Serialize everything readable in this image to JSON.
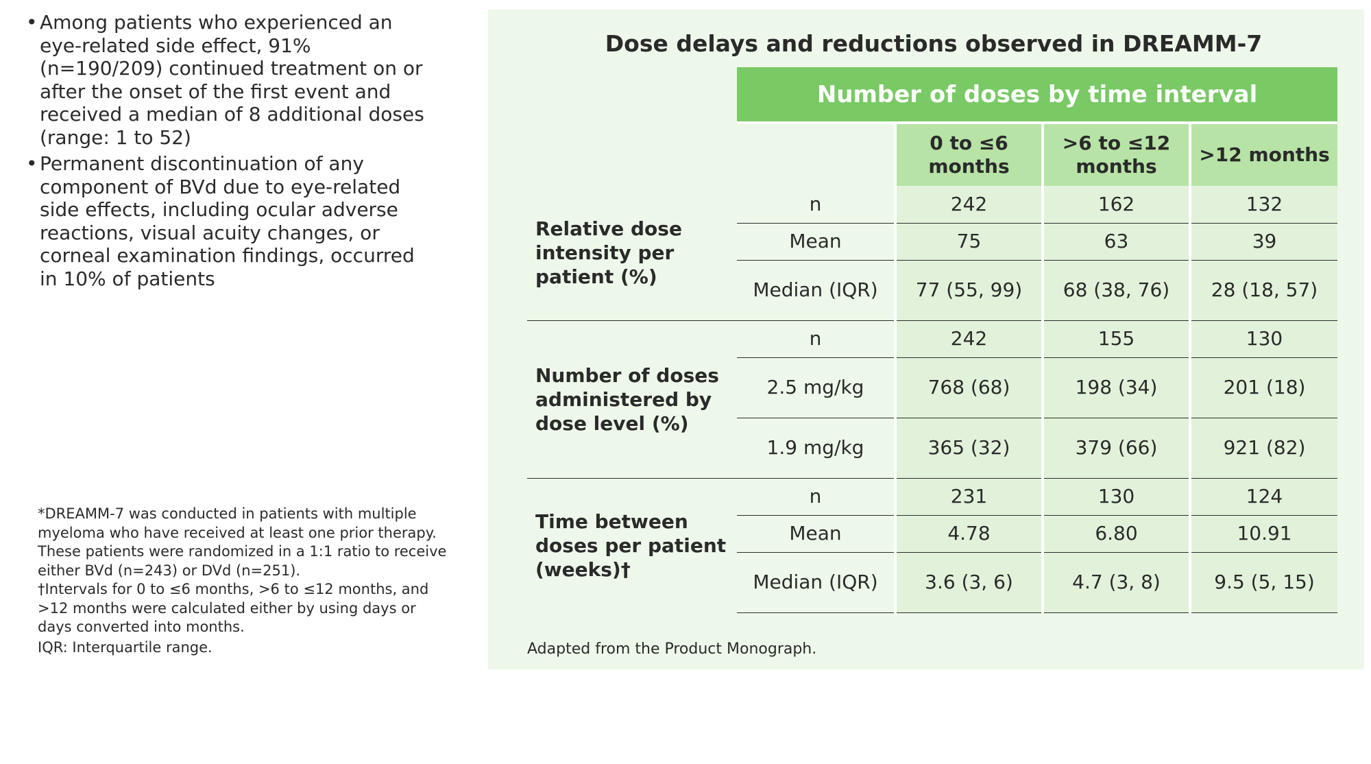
{
  "bullets": [
    "Among patients who experienced an eye-related side effect, 91% (n=190/209) continued treatment on or after the onset of the first event and received a median of 8 additional doses (range: 1 to 52)",
    "Permanent discontinuation of any component of BVd due to eye-related side effects, including ocular adverse reactions, visual acuity changes, or corneal examination findings, occurred in 10% of patients"
  ],
  "bullet_symbol": "•",
  "footnotes": {
    "dreamm": "*DREAMM-7 was conducted in patients with multiple myeloma who have received at least one prior therapy. These patients were randomized in a 1:1 ratio to receive either BVd (n=243) or DVd (n=251).",
    "intervals": "†Intervals for 0 to ≤6 months, >6 to ≤12 months, and >12 months were calculated either by using days or days converted into months.",
    "iqr": "IQR: Interquartile range."
  },
  "panel": {
    "title": "Dose delays and reductions observed in DREAMM-7",
    "group_header": "Number of doses by time interval",
    "columns": [
      "0 to ≤6 months",
      ">6 to ≤12 months",
      ">12 months"
    ],
    "sections": [
      {
        "label": "Relative dose intensity per patient (%)",
        "rows": [
          {
            "stat": "n",
            "values": [
              "242",
              "162",
              "132"
            ]
          },
          {
            "stat": "Mean",
            "values": [
              "75",
              "63",
              "39"
            ]
          },
          {
            "stat": "Median (IQR)",
            "values": [
              "77 (55, 99)",
              "68 (38, 76)",
              "28 (18, 57)"
            ]
          }
        ]
      },
      {
        "label": "Number of doses administered by dose level (%)",
        "rows": [
          {
            "stat": "n",
            "values": [
              "242",
              "155",
              "130"
            ]
          },
          {
            "stat": "2.5 mg/kg",
            "values": [
              "768 (68)",
              "198 (34)",
              "201 (18)"
            ]
          },
          {
            "stat": "1.9 mg/kg",
            "values": [
              "365 (32)",
              "379 (66)",
              "921 (82)"
            ]
          }
        ]
      },
      {
        "label": "Time between doses per patient (weeks)†",
        "rows": [
          {
            "stat": "n",
            "values": [
              "231",
              "130",
              "124"
            ]
          },
          {
            "stat": "Mean",
            "values": [
              "4.78",
              "6.80",
              "10.91"
            ]
          },
          {
            "stat": "Median (IQR)",
            "values": [
              "3.6 (3, 6)",
              "4.7 (3, 8)",
              "9.5 (5, 15)"
            ]
          }
        ]
      }
    ],
    "source": "Adapted from the Product Monograph."
  },
  "colors": {
    "panel_bg": "#eef8ea",
    "group_header_bg": "#79c965",
    "column_header_bg": "#b7e3a6",
    "value_cell_bg": "#e2f2da",
    "text": "#2a2a2a"
  }
}
